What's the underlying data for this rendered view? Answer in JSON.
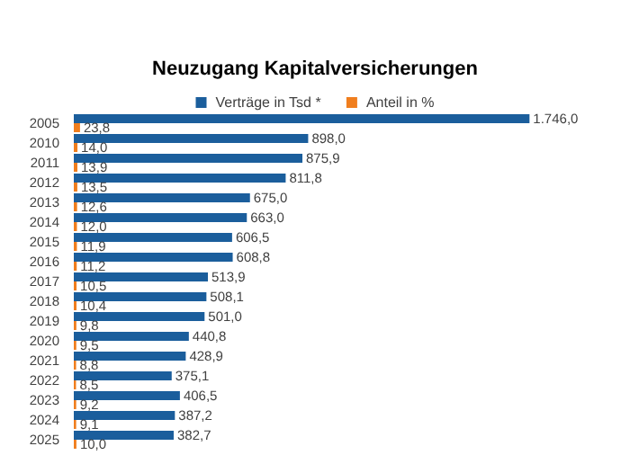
{
  "chart_data": {
    "type": "bar",
    "orientation": "horizontal",
    "title": "Neuzugang Kapitalversicherungen",
    "legend": "top",
    "data_labels": true,
    "categories": [
      "2005",
      "2010",
      "2011",
      "2012",
      "2013",
      "2014",
      "2015",
      "2016",
      "2017",
      "2018",
      "2019",
      "2020",
      "2021",
      "2022",
      "2023",
      "2024",
      "2025"
    ],
    "series": [
      {
        "name": "Verträge in Tsd *",
        "color": "#1b5e9c",
        "values": [
          1746.0,
          898.0,
          875.9,
          811.8,
          675.0,
          663.0,
          606.5,
          608.8,
          513.9,
          508.1,
          501.0,
          440.8,
          428.9,
          375.1,
          406.5,
          387.2,
          382.7
        ],
        "value_labels": [
          "1.746,0",
          "898,0",
          "875,9",
          "811,8",
          "675,0",
          "663,0",
          "606,5",
          "608,8",
          "513,9",
          "508,1",
          "501,0",
          "440,8",
          "428,9",
          "375,1",
          "406,5",
          "387,2",
          "382,7"
        ]
      },
      {
        "name": "Anteil in %",
        "color": "#f07e1e",
        "values": [
          23.8,
          14.0,
          13.9,
          13.5,
          12.6,
          12.0,
          11.9,
          11.2,
          10.5,
          10.4,
          9.8,
          9.5,
          8.8,
          8.5,
          9.2,
          9.1,
          10.0
        ],
        "value_labels": [
          "23,8",
          "14,0",
          "13,9",
          "13,5",
          "12,6",
          "12,0",
          "11,9",
          "11,2",
          "10,5",
          "10,4",
          "9,8",
          "9,5",
          "8,8",
          "8,5",
          "9,2",
          "9,1",
          "10,0"
        ]
      }
    ]
  }
}
